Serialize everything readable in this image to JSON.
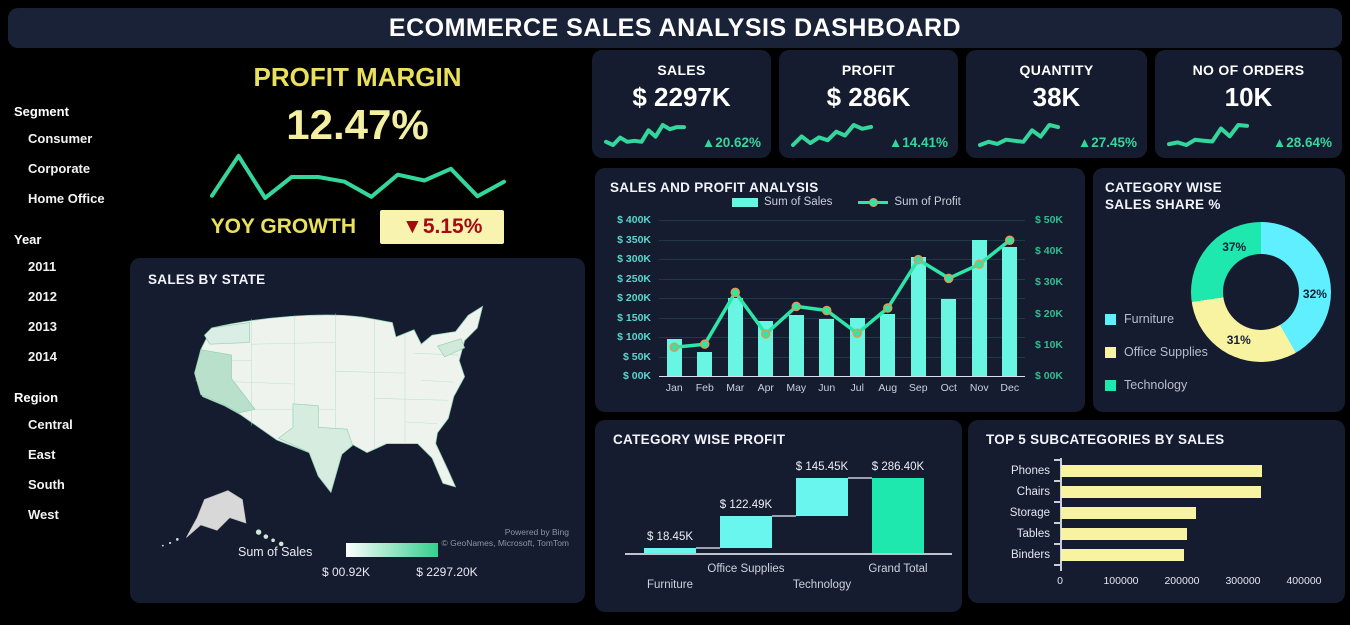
{
  "title": "ECOMMERCE SALES ANALYSIS DASHBOARD",
  "colors": {
    "background": "#000000",
    "card_bg": "#151c30",
    "titlebar_bg": "#1a2238",
    "accent_cyan": "#68f6e2",
    "accent_green": "#2ee6a8",
    "kpi_green": "#35d69c",
    "accent_yellow": "#f7f3a1",
    "gold_text": "#e9e05e",
    "pale_yellow_text": "#f5efa2",
    "yoy_box_bg": "#f8f4b0",
    "yoy_red": "#a40a10",
    "axis_teal": "#58d5cd",
    "axis_green": "#2ebd8d",
    "marker_ring": "#e09a50"
  },
  "sidebar": {
    "groups": [
      {
        "label": "Segment",
        "items": [
          "Consumer",
          "Corporate",
          "Home Office"
        ]
      },
      {
        "label": "Year",
        "items": [
          "2011",
          "2012",
          "2013",
          "2014"
        ]
      },
      {
        "label": "Region",
        "items": [
          "Central",
          "East",
          "South",
          "West"
        ]
      }
    ]
  },
  "profit_margin": {
    "title": "PROFIT MARGIN",
    "value": "12.47%",
    "yoy_label": "YOY GROWTH",
    "yoy_value": "▼5.15%",
    "sparkline": [
      2,
      8.8,
      1.6,
      5.2,
      5.2,
      4.4,
      1.8,
      5.6,
      4.6,
      6.6,
      1.9,
      4.4
    ]
  },
  "kpis": [
    {
      "label": "SALES",
      "value": "$ 2297K",
      "delta": "▲20.62%",
      "sparkline": [
        2.2,
        1.6,
        3.0,
        2.2,
        2.4,
        2.2,
        4.4,
        3.2,
        5.4,
        4.6,
        5.0,
        5.0
      ]
    },
    {
      "label": "PROFIT",
      "value": "$ 286K",
      "delta": "▲14.41%",
      "sparkline": [
        1.4,
        3.2,
        1.8,
        3.0,
        2.4,
        4.2,
        3.4,
        5.6,
        4.8,
        5.2
      ]
    },
    {
      "label": "QUANTITY",
      "value": "38K",
      "delta": "▲27.45%",
      "sparkline": [
        2.0,
        2.6,
        2.2,
        3.0,
        2.8,
        2.6,
        4.8,
        3.6,
        5.8,
        5.4
      ]
    },
    {
      "label": "NO OF ORDERS",
      "value": "10K",
      "delta": "▲28.64%",
      "sparkline": [
        1.6,
        2.0,
        1.4,
        2.6,
        2.4,
        2.2,
        5.2,
        3.4,
        6.0,
        5.8
      ]
    }
  ],
  "map": {
    "title": "SALES BY STATE",
    "legend_label": "Sum of Sales",
    "legend_min": "$ 00.92K",
    "legend_max": "$ 2297.20K",
    "attribution": [
      "Powered by Bing",
      "© GeoNames, Microsoft, TomTom"
    ],
    "state_shading": [
      {
        "state": "California",
        "level": "high"
      },
      {
        "state": "Texas",
        "level": "medium"
      },
      {
        "state": "Washington",
        "level": "low"
      },
      {
        "state": "New York",
        "level": "low"
      }
    ]
  },
  "chart_data": [
    {
      "id": "sales-profit-analysis",
      "type": "bar",
      "subtype": "combo-bar-line",
      "title": "SALES AND PROFIT ANALYSIS",
      "categories": [
        "Jan",
        "Feb",
        "Mar",
        "Apr",
        "May",
        "Jun",
        "Jul",
        "Aug",
        "Sep",
        "Oct",
        "Nov",
        "Dec"
      ],
      "series": [
        {
          "name": "Sum of Sales",
          "type": "bar",
          "axis": "left",
          "unit": "K USD",
          "values": [
            95,
            62,
            200,
            142,
            157,
            147,
            150,
            160,
            305,
            198,
            350,
            332
          ]
        },
        {
          "name": "Sum of Profit",
          "type": "line",
          "axis": "right",
          "unit": "K USD",
          "values": [
            9.2,
            10.2,
            26.8,
            13.5,
            22.3,
            21,
            13.7,
            21.8,
            37.3,
            31.3,
            35.8,
            43.5
          ]
        }
      ],
      "left_axis": {
        "ticks": [
          "$ 400K",
          "$ 350K",
          "$ 300K",
          "$ 250K",
          "$ 200K",
          "$ 150K",
          "$ 100K",
          "$ 50K",
          "$ 00K"
        ],
        "min": 0,
        "max": 400
      },
      "right_axis": {
        "ticks": [
          "$ 50K",
          "$ 40K",
          "$ 30K",
          "$ 20K",
          "$ 10K",
          "$ 00K"
        ],
        "min": 0,
        "max": 50
      },
      "grid": true,
      "legend_position": "top-center"
    },
    {
      "id": "category-sales-share",
      "type": "pie",
      "subtype": "donut",
      "title": "CATEGORY WISE SALES SHARE %",
      "title_lines": [
        "CATEGORY WISE",
        "SALES SHARE %"
      ],
      "start_angle_deg": 35,
      "slices": [
        {
          "label": "Furniture",
          "value_pct": 32,
          "color": "#5fefff"
        },
        {
          "label": "Office Supplies",
          "value_pct": 31,
          "color": "#f7f3a1"
        },
        {
          "label": "Technology",
          "value_pct": 37,
          "color": "#1fe8ae"
        }
      ],
      "legend_position": "left-bottom"
    },
    {
      "id": "category-profit-waterfall",
      "type": "bar",
      "subtype": "waterfall",
      "title": "CATEGORY WISE PROFIT",
      "unit": "K USD",
      "bars": [
        {
          "label": "Furniture",
          "value_label": "$ 18.45K",
          "value_k": 18.45,
          "start_k": 0,
          "end_k": 18.45,
          "color": "#68f6ef",
          "label_row": "low"
        },
        {
          "label": "Office Supplies",
          "value_label": "$ 122.49K",
          "value_k": 122.49,
          "start_k": 18.45,
          "end_k": 140.94,
          "color": "#68f6ef",
          "label_row": "high"
        },
        {
          "label": "Technology",
          "value_label": "$ 145.45K",
          "value_k": 145.45,
          "start_k": 140.94,
          "end_k": 286.4,
          "color": "#68f6ef",
          "label_row": "low"
        },
        {
          "label": "Grand Total",
          "value_label": "$ 286.40K",
          "value_k": 286.4,
          "start_k": 0,
          "end_k": 286.4,
          "color": "#1fe8ae",
          "label_row": "high"
        }
      ]
    },
    {
      "id": "top5-subcategories",
      "type": "bar",
      "subtype": "horizontal",
      "title": "TOP 5 SUBCATEGORIES BY SALES",
      "categories": [
        "Phones",
        "Chairs",
        "Storage",
        "Tables",
        "Binders"
      ],
      "values": [
        330000,
        328000,
        222000,
        206000,
        202000
      ],
      "bar_color": "#f7f3a1",
      "xticks": [
        "0",
        "100000",
        "200000",
        "300000",
        "400000"
      ],
      "xlim": [
        0,
        400000
      ],
      "grid": false
    }
  ]
}
